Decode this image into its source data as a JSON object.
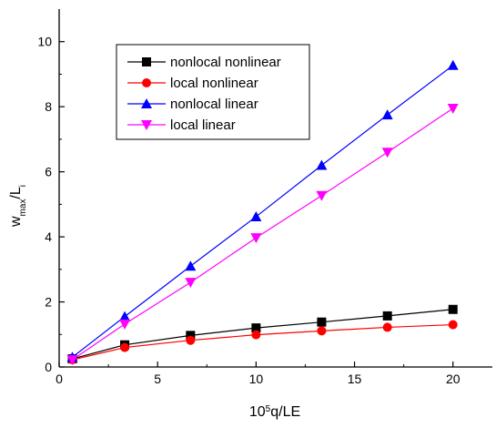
{
  "chart_data": {
    "type": "line",
    "xlabel_main": "q/LE",
    "xlabel_prefix": "10",
    "xlabel_sup": "5",
    "ylabel_main": "w",
    "ylabel_sub": "max",
    "ylabel_mid": "/L",
    "ylabel_sub2": "i",
    "xlim": [
      0,
      22
    ],
    "ylim": [
      0,
      11
    ],
    "x_ticks": [
      0,
      5,
      10,
      15,
      20
    ],
    "y_ticks": [
      0,
      2,
      4,
      6,
      8,
      10
    ],
    "x": [
      0.67,
      3.33,
      6.67,
      10.0,
      13.33,
      16.67,
      20.0
    ],
    "grid": false,
    "legend_position": "top-left",
    "series": [
      {
        "name": "nonlocal nonlinear",
        "marker": "square",
        "color": "#000000",
        "values": [
          0.25,
          0.68,
          0.97,
          1.2,
          1.38,
          1.57,
          1.77
        ]
      },
      {
        "name": "local nonlinear",
        "marker": "circle",
        "color": "#ff0000",
        "values": [
          0.22,
          0.6,
          0.82,
          0.99,
          1.11,
          1.22,
          1.3
        ]
      },
      {
        "name": "nonlocal linear",
        "marker": "triangle-up",
        "color": "#0000ff",
        "values": [
          0.3,
          1.55,
          3.1,
          4.62,
          6.2,
          7.75,
          9.27
        ]
      },
      {
        "name": "local linear",
        "marker": "triangle-down",
        "color": "#ff00ff",
        "values": [
          0.22,
          1.32,
          2.6,
          3.97,
          5.27,
          6.6,
          7.95
        ]
      }
    ]
  }
}
